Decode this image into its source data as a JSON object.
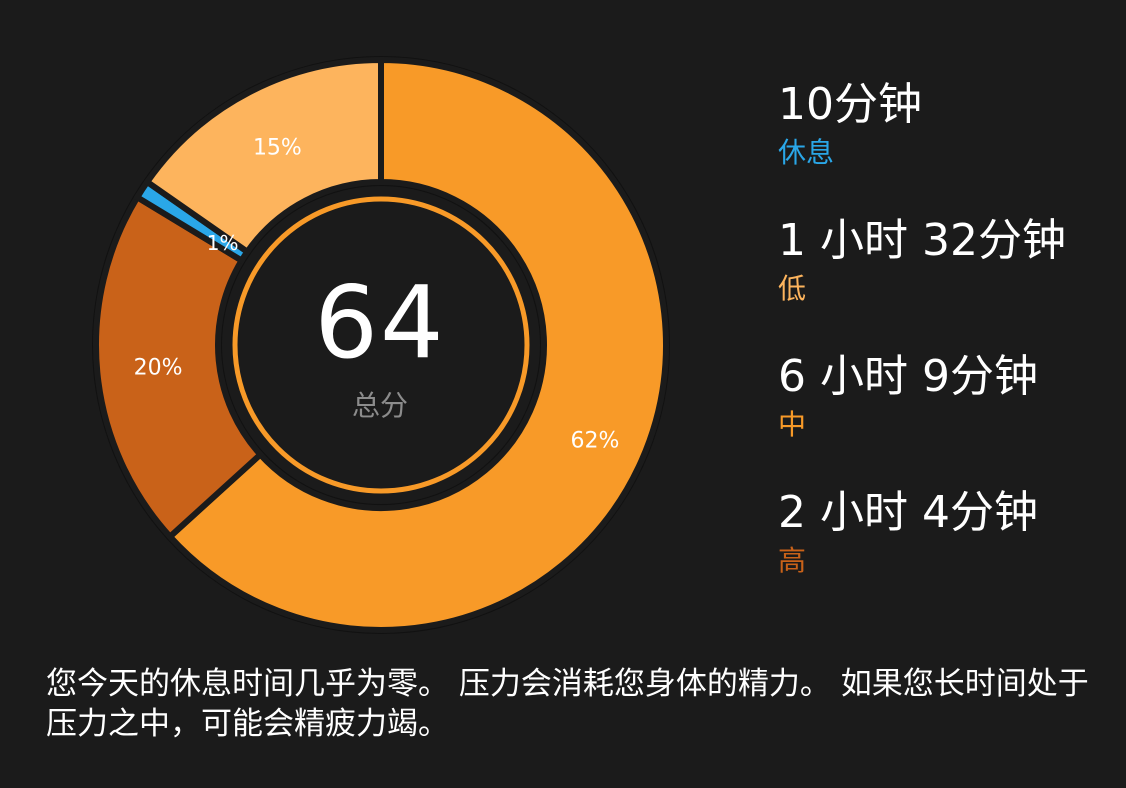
{
  "summary": {
    "score": "64",
    "score_label": "总分"
  },
  "legend": [
    {
      "duration": "10分钟",
      "level": "休息",
      "color": "#2aa7e8"
    },
    {
      "duration": "1 小时 32分钟",
      "level": "低",
      "color": "#fdb45d"
    },
    {
      "duration": "6 小时 9分钟",
      "level": "中",
      "color": "#f89a28"
    },
    {
      "duration": "2 小时 4分钟",
      "level": "高",
      "color": "#c96219"
    }
  ],
  "description": "您今天的休息时间几乎为零。 压力会消耗您身体的精力。 如果您长时间处于压力之中，可能会精疲力竭。",
  "chart_data": {
    "type": "pie",
    "variant": "donut",
    "center_value": "64",
    "center_label": "总分",
    "slices": [
      {
        "name": "中",
        "value": 62,
        "label": "62%",
        "color": "#f89a28"
      },
      {
        "name": "高",
        "value": 20,
        "label": "20%",
        "color": "#c96219"
      },
      {
        "name": "休息",
        "value": 1,
        "label": "1%",
        "color": "#2aa7e8"
      },
      {
        "name": "低",
        "value": 15,
        "label": "15%",
        "color": "#fdb45d"
      }
    ],
    "start_direction": "top",
    "direction": "clockwise",
    "inner_ring_color": "#f89a28"
  }
}
